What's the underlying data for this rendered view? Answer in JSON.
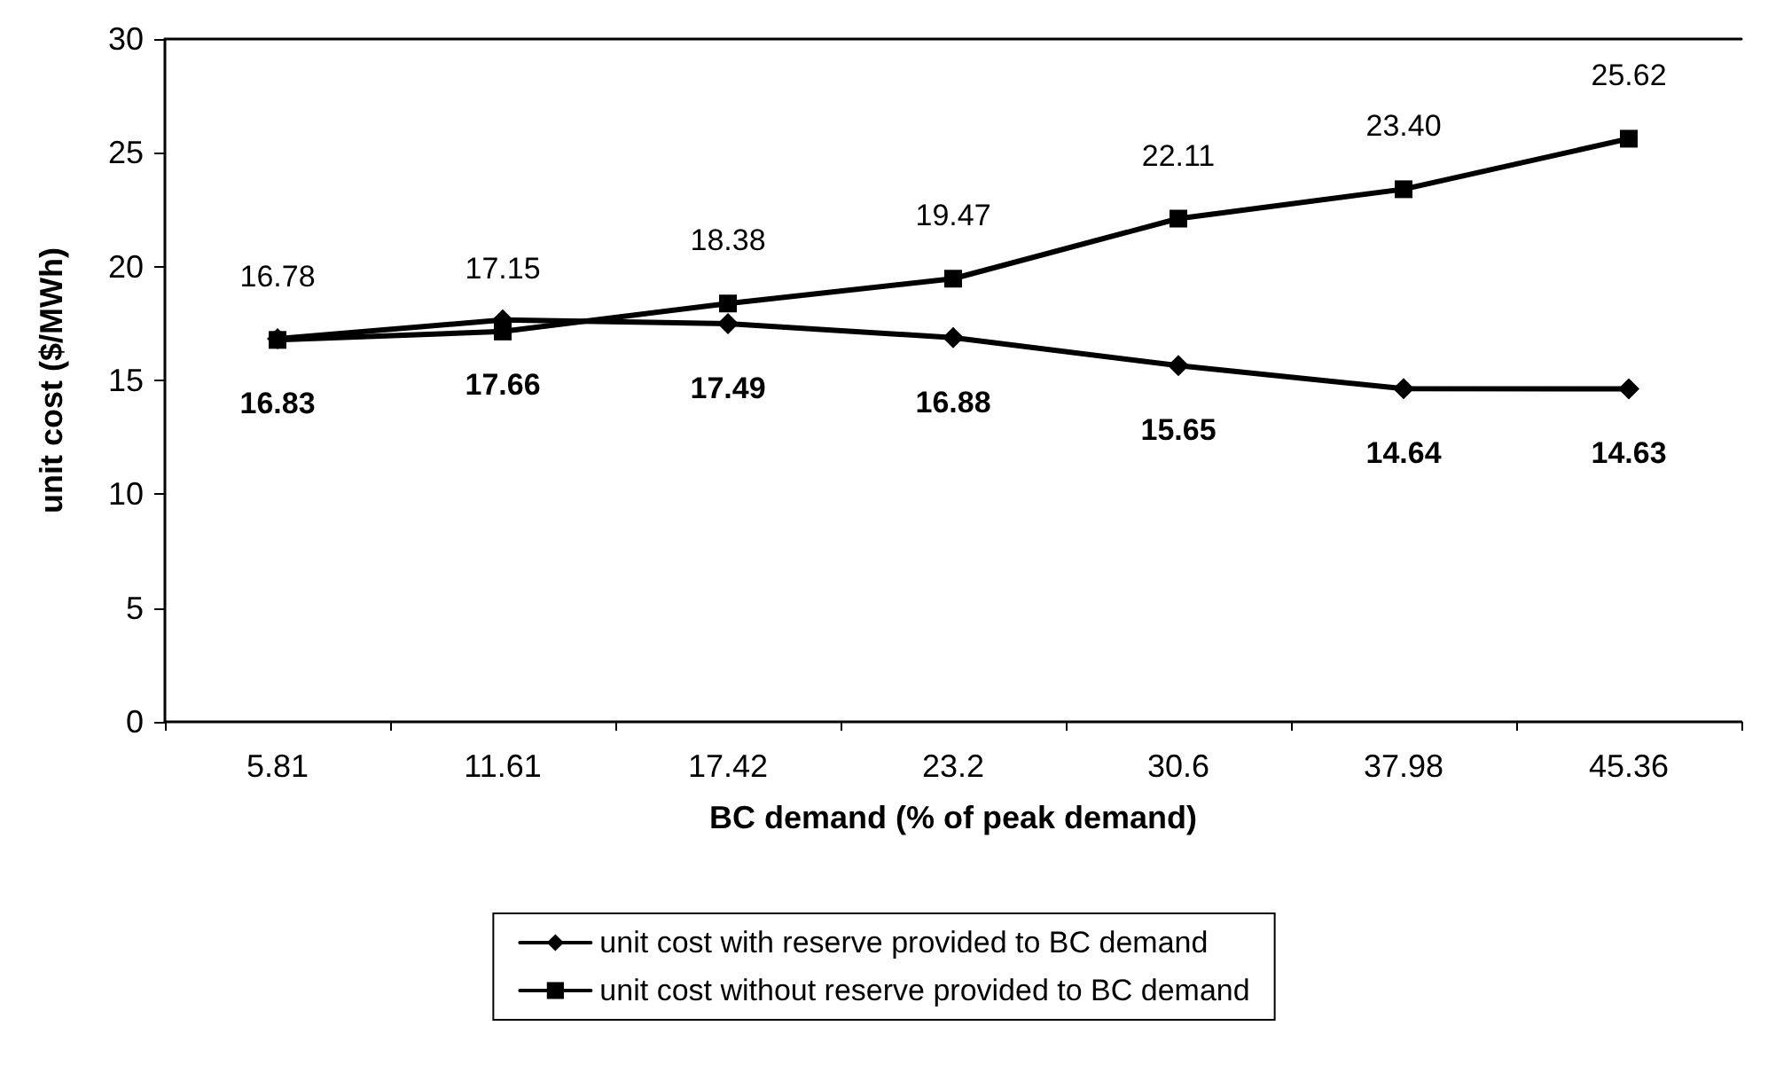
{
  "chart_data": {
    "type": "line",
    "categories": [
      "5.81",
      "11.61",
      "17.42",
      "23.2",
      "30.6",
      "37.98",
      "45.36"
    ],
    "series": [
      {
        "name": "unit cost with reserve provided to BC demand",
        "color": "#000000",
        "marker": "diamond",
        "values": [
          16.83,
          17.66,
          17.49,
          16.88,
          15.65,
          14.64,
          14.63
        ],
        "value_labels": [
          "16.83",
          "17.66",
          "17.49",
          "16.88",
          "15.65",
          "14.64",
          "14.63"
        ]
      },
      {
        "name": "unit cost without reserve provided to BC demand",
        "color": "#000000",
        "marker": "square",
        "values": [
          16.78,
          17.15,
          18.38,
          19.47,
          22.11,
          23.4,
          25.62
        ],
        "value_labels": [
          "16.78",
          "17.15",
          "18.38",
          "19.47",
          "22.11",
          "23.40",
          "25.62"
        ]
      }
    ],
    "xlabel": "BC demand (% of peak demand)",
    "ylabel": "unit cost ($/MWh)",
    "ylim": [
      0,
      30
    ],
    "yticks": [
      0,
      5,
      10,
      15,
      20,
      25,
      30
    ],
    "grid": false,
    "legend": "bottom",
    "line_style": "solid"
  }
}
